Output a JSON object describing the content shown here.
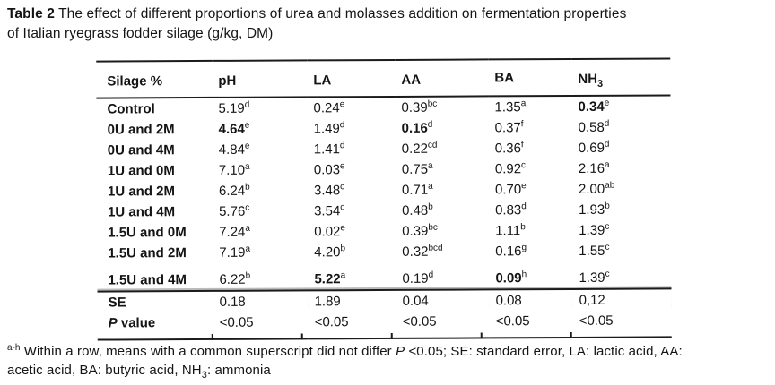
{
  "title": {
    "bold": "Table 2",
    "line1": "The effect of different proportions of urea and molasses addition on fermentation properties",
    "line2": "of Italian ryegrass fodder silage (g/kg, DM)"
  },
  "table": {
    "columns": [
      {
        "label": "Silage %"
      },
      {
        "label": "pH"
      },
      {
        "label": "LA"
      },
      {
        "label": "AA"
      },
      {
        "label": "BA",
        "raised": true
      },
      {
        "label": "NH",
        "sub": "3"
      }
    ],
    "rows": [
      {
        "label": "Control",
        "cells": [
          {
            "v": "5.19",
            "s": "d"
          },
          {
            "v": "0.24",
            "s": "e"
          },
          {
            "v": "0.39",
            "s": "bc"
          },
          {
            "v": "1.35",
            "s": "a"
          },
          {
            "v": "0.34",
            "s": "e",
            "b": true
          }
        ]
      },
      {
        "label": "0U and 2M",
        "cells": [
          {
            "v": "4.64",
            "s": "e",
            "b": true
          },
          {
            "v": "1.49",
            "s": "d"
          },
          {
            "v": "0.16",
            "s": "d",
            "b": true
          },
          {
            "v": "0.37",
            "s": "f"
          },
          {
            "v": "0.58",
            "s": "d"
          }
        ]
      },
      {
        "label": "0U and 4M",
        "cells": [
          {
            "v": "4.84",
            "s": "e"
          },
          {
            "v": "1.41",
            "s": "d"
          },
          {
            "v": "0.22",
            "s": "cd"
          },
          {
            "v": "0.36",
            "s": "f"
          },
          {
            "v": "0.69",
            "s": "d"
          }
        ]
      },
      {
        "label": "1U and 0M",
        "cells": [
          {
            "v": "7.10",
            "s": "a"
          },
          {
            "v": "0.03",
            "s": "e"
          },
          {
            "v": "0.75",
            "s": "a"
          },
          {
            "v": "0.92",
            "s": "c"
          },
          {
            "v": "2.16",
            "s": "a"
          }
        ]
      },
      {
        "label": "1U and 2M",
        "cells": [
          {
            "v": "6.24",
            "s": "b"
          },
          {
            "v": "3.48",
            "s": "c"
          },
          {
            "v": "0.71",
            "s": "a"
          },
          {
            "v": "0.70",
            "s": "e"
          },
          {
            "v": "2.00",
            "s": "ab"
          }
        ]
      },
      {
        "label": "1U and 4M",
        "cells": [
          {
            "v": "5.76",
            "s": "c"
          },
          {
            "v": "3.54",
            "s": "c"
          },
          {
            "v": "0.48",
            "s": "b"
          },
          {
            "v": "0.83",
            "s": "d"
          },
          {
            "v": "1.93",
            "s": "b"
          }
        ]
      },
      {
        "label": "1.5U and 0M",
        "cells": [
          {
            "v": "7.24",
            "s": "a"
          },
          {
            "v": "0.02",
            "s": "e"
          },
          {
            "v": "0.39",
            "s": "bc"
          },
          {
            "v": "1.11",
            "s": "b"
          },
          {
            "v": "1.39",
            "s": "c"
          }
        ]
      },
      {
        "label": "1.5U and 2M",
        "cells": [
          {
            "v": "7.19",
            "s": "a"
          },
          {
            "v": "4.20",
            "s": "b"
          },
          {
            "v": "0.32",
            "s": "bcd"
          },
          {
            "v": "0.16",
            "s": "g"
          },
          {
            "v": "1.55",
            "s": "c"
          }
        ]
      },
      {
        "label": "1.5U and 4M",
        "cls": "gap-row",
        "cells": [
          {
            "v": "6.22",
            "s": "b"
          },
          {
            "v": "5.22",
            "s": "a",
            "b": true
          },
          {
            "v": "0.19",
            "s": "d"
          },
          {
            "v": "0.09",
            "s": "h",
            "b": true
          },
          {
            "v": "1.39",
            "s": "c"
          }
        ]
      },
      {
        "label": "SE",
        "cls": "se-row",
        "cells": [
          {
            "v": "0.18"
          },
          {
            "v": "1.89"
          },
          {
            "v": "0.04"
          },
          {
            "v": "0.08"
          },
          {
            "v": "0,12"
          }
        ]
      },
      {
        "label": " value",
        "label_italic_prefix": "P",
        "cls": "p-row",
        "cells": [
          {
            "v": "<0.05"
          },
          {
            "v": "<0.05"
          },
          {
            "v": "<0.05"
          },
          {
            "v": "<0.05"
          },
          {
            "v": "<0.05"
          }
        ]
      }
    ]
  },
  "footnote": {
    "parts": [
      {
        "sup": "a-h"
      },
      {
        "t": " Within a row, means with a common superscript did not differ "
      },
      {
        "i": "P"
      },
      {
        "t": " <0.05; SE: standard error, LA: lactic acid, AA:"
      },
      {
        "br": true
      },
      {
        "t": "acetic acid, BA: butyric acid, NH"
      },
      {
        "sub": "3"
      },
      {
        "t": ": ammonia"
      }
    ]
  },
  "colors": {
    "text": "#141414",
    "rule": "#1b1b1b",
    "rule_shadow": "#bbbbbb",
    "background": "#ffffff"
  }
}
